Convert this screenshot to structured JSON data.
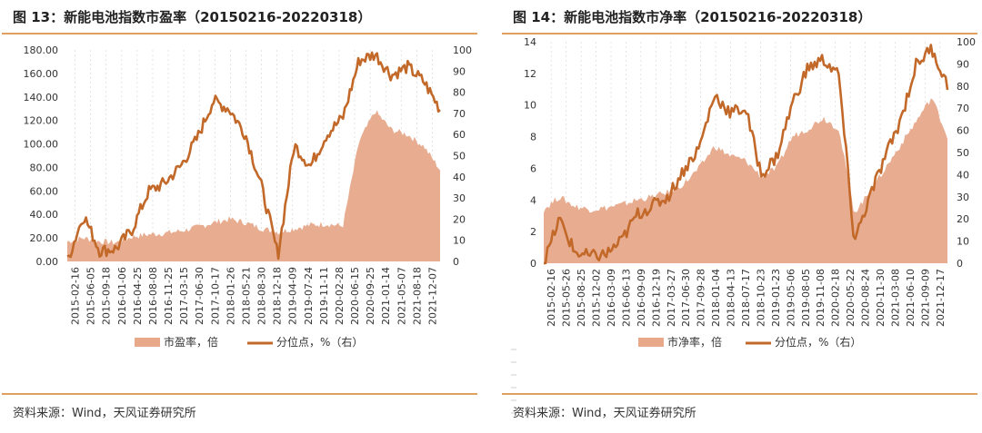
{
  "figures": [
    {
      "title": "图 13：新能电池指数市盈率（20150216-20220318）",
      "source": "资料来源：Wind，天风证券研究所"
    },
    {
      "title": "图 14：新能电池指数市净率（20150216-20220318）",
      "source": "资料来源：Wind，天风证券研究所"
    }
  ],
  "colors": {
    "area": "#e7a98a",
    "line": "#c2692a",
    "rule": "#e0a060"
  },
  "chart_data": [
    {
      "type": "area",
      "title": "图 13：新能电池指数市盈率（20150216-20220318）",
      "x": [
        "2015-02-16",
        "2015-06-05",
        "2015-09-18",
        "2016-01-06",
        "2016-04-25",
        "2016-08-08",
        "2016-11-25",
        "2017-03-15",
        "2017-06-30",
        "2017-10-17",
        "2018-01-26",
        "2018-05-21",
        "2018-08-30",
        "2018-12-18",
        "2019-04-09",
        "2019-07-24",
        "2019-11-11",
        "2020-02-28",
        "2020-06-15",
        "2020-09-25",
        "2021-01-14",
        "2021-05-07",
        "2021-08-18",
        "2021-12-07"
      ],
      "y_left": {
        "ticks": [
          "0.00",
          "20.00",
          "40.00",
          "60.00",
          "80.00",
          "100.00",
          "120.00",
          "140.00",
          "160.00",
          "180.00"
        ],
        "ylim": [
          0,
          180
        ]
      },
      "y_right": {
        "ticks": [
          "0",
          "10",
          "20",
          "30",
          "40",
          "50",
          "60",
          "70",
          "80",
          "90",
          "100"
        ],
        "ylim": [
          0,
          100
        ]
      },
      "series": [
        {
          "name": "市盈率，倍",
          "kind": "area",
          "axis": "left",
          "values": [
            17,
            20,
            17,
            16,
            21,
            23,
            24,
            26,
            29,
            33,
            36,
            33,
            28,
            25,
            28,
            31,
            32,
            30,
            102,
            128,
            112,
            108,
            98,
            78
          ]
        },
        {
          "name": "分位点，%（右）",
          "kind": "line",
          "axis": "right",
          "values": [
            0,
            22,
            5,
            6,
            15,
            33,
            37,
            45,
            58,
            76,
            72,
            60,
            35,
            3,
            55,
            45,
            60,
            68,
            95,
            98,
            88,
            92,
            85,
            72
          ]
        }
      ],
      "legend": [
        "市盈率，倍",
        "分位点，%（右）"
      ],
      "legend_position": "bottom"
    },
    {
      "type": "area",
      "title": "图 14：新能电池指数市净率（20150216-20220318）",
      "x": [
        "2015-02-16",
        "2015-05-26",
        "2015-08-25",
        "2015-12-02",
        "2016-03-09",
        "2016-06-13",
        "2016-09-09",
        "2016-12-19",
        "2017-03-27",
        "2017-06-30",
        "2017-09-28",
        "2018-01-04",
        "2018-04-13",
        "2018-07-17",
        "2018-10-23",
        "2019-01-23",
        "2019-05-06",
        "2019-08-05",
        "2019-11-08",
        "2020-02-18",
        "2020-05-22",
        "2020-08-24",
        "2020-11-30",
        "2021-03-08",
        "2021-06-10",
        "2021-09-09",
        "2021-12-17"
      ],
      "y_left": {
        "ticks": [
          "0",
          "2",
          "4",
          "6",
          "8",
          "10",
          "12",
          "14"
        ],
        "ylim": [
          0,
          14
        ]
      },
      "y_right": {
        "ticks": [
          "0",
          "10",
          "20",
          "30",
          "40",
          "50",
          "60",
          "70",
          "80",
          "90",
          "100"
        ],
        "ylim": [
          0,
          100
        ]
      },
      "series": [
        {
          "name": "市净率，倍",
          "kind": "area",
          "axis": "left",
          "values": [
            3.4,
            4.2,
            3.6,
            3.4,
            3.5,
            3.7,
            4.0,
            4.2,
            4.5,
            5.0,
            6.0,
            7.4,
            6.8,
            6.5,
            5.5,
            6.0,
            8.0,
            8.5,
            9.2,
            8.5,
            3.2,
            4.5,
            6.0,
            7.5,
            9.0,
            10.5,
            8.0
          ]
        },
        {
          "name": "分位点，%（右）",
          "kind": "line",
          "axis": "right",
          "values": [
            0,
            20,
            5,
            3,
            4,
            10,
            22,
            26,
            30,
            42,
            52,
            76,
            68,
            70,
            40,
            48,
            72,
            88,
            92,
            85,
            10,
            30,
            48,
            65,
            90,
            97,
            80
          ]
        }
      ],
      "legend": [
        "市净率，倍",
        "分位点，%（右）"
      ],
      "legend_position": "bottom"
    }
  ]
}
